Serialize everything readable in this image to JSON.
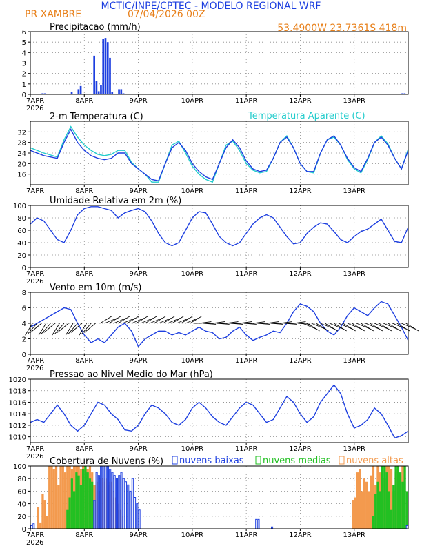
{
  "header": {
    "title": "MCTIC/INPE/CPTEC - MODELO REGIONAL WRF",
    "location": "PR XAMBRE",
    "run": "07/04/2026 00Z",
    "coords": "53.4900W  23.7361S  418m"
  },
  "colors": {
    "blue": "#1d3fe0",
    "cyan": "#22cccc",
    "orange": "#f39a4e",
    "green": "#22c022",
    "header_orange": "#e8801a",
    "header_blue": "#1d3fe0"
  },
  "x_axis": {
    "labels": [
      "7APR",
      "8APR",
      "9APR",
      "10APR",
      "11APR",
      "12APR",
      "13APR"
    ],
    "year_label": "2026",
    "hours_total": 168
  },
  "chart_data": [
    {
      "id": "precip",
      "type": "bar",
      "title": "Precipitacao (mm/h)",
      "ylim": [
        0,
        6
      ],
      "yticks": [
        0,
        1,
        2,
        3,
        4,
        5,
        6
      ],
      "x_hours": [
        5,
        6,
        18,
        21,
        22,
        28,
        29,
        30,
        31,
        32,
        33,
        34,
        35,
        36,
        39,
        40,
        41,
        165,
        166
      ],
      "values": [
        0.1,
        0.1,
        0.2,
        0.5,
        0.8,
        3.7,
        1.3,
        0.3,
        0.9,
        5.3,
        5.4,
        5.0,
        3.5,
        0.2,
        0.5,
        0.5,
        0.1,
        0.1,
        0.1
      ]
    },
    {
      "id": "temp",
      "type": "line",
      "title": "2-m Temperatura (C)",
      "legend_right": "Temperatura Aparente (C)",
      "ylim": [
        12,
        36
      ],
      "yticks": [
        16,
        20,
        24,
        28,
        32
      ],
      "x_hours": [
        0,
        6,
        12,
        15,
        18,
        21,
        24,
        27,
        30,
        33,
        36,
        39,
        42,
        45,
        48,
        51,
        54,
        57,
        60,
        63,
        66,
        69,
        72,
        75,
        78,
        81,
        84,
        87,
        90,
        93,
        96,
        99,
        102,
        105,
        108,
        111,
        114,
        117,
        120,
        123,
        126,
        129,
        132,
        135,
        138,
        141,
        144,
        147,
        150,
        153,
        156,
        159,
        162,
        165,
        168
      ],
      "series": [
        {
          "name": "2-m Temperatura (C)",
          "color": "blue",
          "values": [
            25,
            23,
            22,
            28,
            33,
            28,
            25,
            23,
            22,
            21.5,
            22,
            24,
            24,
            20,
            18,
            16,
            14,
            13.5,
            20,
            26,
            28,
            25,
            20,
            17,
            15,
            14,
            20,
            26,
            29,
            26,
            21,
            18,
            17,
            17.5,
            22,
            28,
            30,
            26,
            20,
            17,
            17,
            24,
            29,
            30.5,
            27,
            22,
            18.5,
            17,
            22,
            28,
            30,
            27,
            22,
            18,
            25
          ]
        },
        {
          "name": "Temperatura Aparente (C)",
          "color": "cyan",
          "values": [
            26,
            24,
            22.5,
            29,
            34,
            30,
            27,
            25,
            23.5,
            23,
            23.5,
            25,
            25,
            20.5,
            18,
            16,
            13,
            13,
            20,
            27,
            28.5,
            24,
            19,
            16,
            14,
            13,
            20,
            27,
            28.5,
            25,
            20,
            17.5,
            16.5,
            17,
            22,
            28,
            30.5,
            26,
            20,
            17,
            16.5,
            24,
            29,
            30,
            27,
            21.5,
            18,
            16.5,
            21.5,
            28,
            30.5,
            27.5,
            22,
            18,
            25.5
          ]
        }
      ]
    },
    {
      "id": "rh",
      "type": "line",
      "title": "Umidade Relativa em 2m (%)",
      "ylim": [
        0,
        100
      ],
      "yticks": [
        0,
        20,
        40,
        60,
        80,
        100
      ],
      "x_hours": [
        0,
        3,
        6,
        9,
        12,
        15,
        18,
        21,
        24,
        27,
        30,
        33,
        36,
        39,
        42,
        45,
        48,
        51,
        54,
        57,
        60,
        63,
        66,
        69,
        72,
        75,
        78,
        81,
        84,
        87,
        90,
        93,
        96,
        99,
        102,
        105,
        108,
        111,
        114,
        117,
        120,
        123,
        126,
        129,
        132,
        135,
        138,
        141,
        144,
        147,
        150,
        153,
        156,
        159,
        162,
        165,
        168
      ],
      "values": [
        70,
        80,
        75,
        60,
        45,
        40,
        60,
        85,
        95,
        98,
        98,
        95,
        92,
        80,
        88,
        92,
        95,
        90,
        75,
        55,
        40,
        35,
        40,
        60,
        80,
        90,
        88,
        70,
        50,
        40,
        35,
        40,
        55,
        70,
        80,
        85,
        80,
        65,
        50,
        38,
        40,
        55,
        65,
        72,
        70,
        58,
        45,
        40,
        50,
        58,
        62,
        70,
        78,
        60,
        42,
        40,
        65
      ]
    },
    {
      "id": "wind",
      "type": "line",
      "title": "Vento em 10m (m/s)",
      "ylim": [
        0,
        8
      ],
      "yticks": [
        0,
        2,
        4,
        6,
        8
      ],
      "x_hours": [
        0,
        6,
        12,
        15,
        18,
        21,
        24,
        27,
        30,
        33,
        36,
        39,
        42,
        45,
        48,
        51,
        54,
        57,
        60,
        63,
        66,
        69,
        72,
        75,
        78,
        81,
        84,
        87,
        90,
        93,
        96,
        99,
        102,
        105,
        108,
        111,
        114,
        117,
        120,
        123,
        126,
        129,
        132,
        135,
        138,
        141,
        144,
        147,
        150,
        153,
        156,
        159,
        162,
        165,
        168
      ],
      "values": [
        3.5,
        4.5,
        5.5,
        6,
        5.8,
        4,
        2.5,
        1.5,
        2,
        1.5,
        2.5,
        3.5,
        4,
        3,
        1,
        2,
        2.5,
        3,
        3,
        2.5,
        2.8,
        2.5,
        3,
        3.5,
        3,
        2.8,
        2,
        2.2,
        3,
        3.5,
        2.5,
        1.8,
        2.2,
        2.5,
        3,
        2.8,
        4,
        5.5,
        6.5,
        6.2,
        5.5,
        4,
        3,
        2.5,
        3.5,
        5,
        6,
        5.5,
        5,
        6,
        6.8,
        6.5,
        5,
        3.5,
        1.8
      ]
    },
    {
      "id": "pressure",
      "type": "line",
      "title": "Pressao ao Nivel Medio do Mar (hPa)",
      "ylim": [
        1009,
        1020
      ],
      "yticks": [
        1010,
        1012,
        1014,
        1016,
        1018,
        1020
      ],
      "x_hours": [
        0,
        3,
        6,
        9,
        12,
        15,
        18,
        21,
        24,
        27,
        30,
        33,
        36,
        39,
        42,
        45,
        48,
        51,
        54,
        57,
        60,
        63,
        66,
        69,
        72,
        75,
        78,
        81,
        84,
        87,
        90,
        93,
        96,
        99,
        102,
        105,
        108,
        111,
        114,
        117,
        120,
        123,
        126,
        129,
        132,
        135,
        138,
        141,
        144,
        147,
        150,
        153,
        156,
        159,
        162,
        165,
        168
      ],
      "values": [
        1012.5,
        1013,
        1012.5,
        1014,
        1015.5,
        1014,
        1012,
        1011,
        1012,
        1014,
        1016,
        1015.5,
        1014,
        1013,
        1011.2,
        1011,
        1012,
        1014,
        1015.5,
        1015,
        1014,
        1012.5,
        1012,
        1013,
        1015,
        1016,
        1015,
        1013.5,
        1012.5,
        1012,
        1013.5,
        1015,
        1016,
        1015.5,
        1014,
        1012.5,
        1013,
        1015,
        1017,
        1016,
        1014,
        1012.5,
        1013.5,
        1016,
        1017.5,
        1019,
        1017.5,
        1014,
        1011.5,
        1012,
        1013,
        1015,
        1014,
        1012,
        1009.8,
        1010.2,
        1011
      ]
    },
    {
      "id": "clouds",
      "type": "bar",
      "title": "Cobertura de Nuvens (%)",
      "ylim": [
        0,
        100
      ],
      "yticks": [
        0,
        20,
        40,
        60,
        80,
        100
      ],
      "series": [
        {
          "name": "nuvens baixas",
          "color": "blue",
          "x_hours": [
            0,
            1,
            28,
            29,
            30,
            31,
            32,
            33,
            34,
            35,
            36,
            37,
            38,
            39,
            40,
            41,
            42,
            43,
            44,
            45,
            46,
            47,
            48,
            100,
            101,
            107,
            167
          ],
          "values": [
            5,
            8,
            45,
            90,
            85,
            100,
            100,
            100,
            100,
            95,
            90,
            85,
            80,
            85,
            90,
            80,
            75,
            70,
            60,
            80,
            50,
            40,
            30,
            15,
            15,
            3,
            5
          ]
        },
        {
          "name": "nuvens medias",
          "color": "green",
          "x_hours": [
            16,
            17,
            18,
            19,
            20,
            21,
            22,
            23,
            24,
            25,
            26,
            27,
            152,
            153,
            154,
            155,
            156,
            157,
            158,
            159,
            160,
            161,
            162,
            163,
            164,
            165,
            166,
            167
          ],
          "values": [
            30,
            50,
            80,
            60,
            90,
            85,
            70,
            95,
            100,
            90,
            80,
            75,
            20,
            55,
            75,
            60,
            100,
            100,
            90,
            60,
            30,
            70,
            100,
            100,
            90,
            75,
            100,
            60
          ]
        },
        {
          "name": "nuvens altas",
          "color": "orange",
          "x_hours": [
            3,
            4,
            5,
            6,
            7,
            8,
            9,
            10,
            11,
            12,
            13,
            14,
            15,
            16,
            17,
            18,
            19,
            20,
            21,
            22,
            23,
            24,
            25,
            26,
            27,
            28,
            29,
            30,
            31,
            32,
            33,
            34,
            35,
            36,
            37,
            38,
            39,
            40,
            143,
            144,
            145,
            146,
            147,
            148,
            149,
            150,
            151,
            152,
            153,
            154,
            155,
            156,
            157,
            158,
            159,
            160,
            161,
            162,
            163,
            164,
            165
          ],
          "values": [
            35,
            10,
            55,
            45,
            20,
            100,
            100,
            95,
            100,
            70,
            100,
            100,
            90,
            100,
            100,
            95,
            100,
            100,
            100,
            95,
            100,
            100,
            95,
            100,
            90,
            70,
            75,
            60,
            80,
            75,
            80,
            70,
            75,
            60,
            50,
            40,
            30,
            20,
            45,
            50,
            90,
            95,
            60,
            80,
            75,
            60,
            85,
            100,
            70,
            100,
            90,
            60,
            80,
            100,
            100,
            95,
            60,
            90,
            95,
            85,
            100
          ]
        }
      ]
    }
  ]
}
